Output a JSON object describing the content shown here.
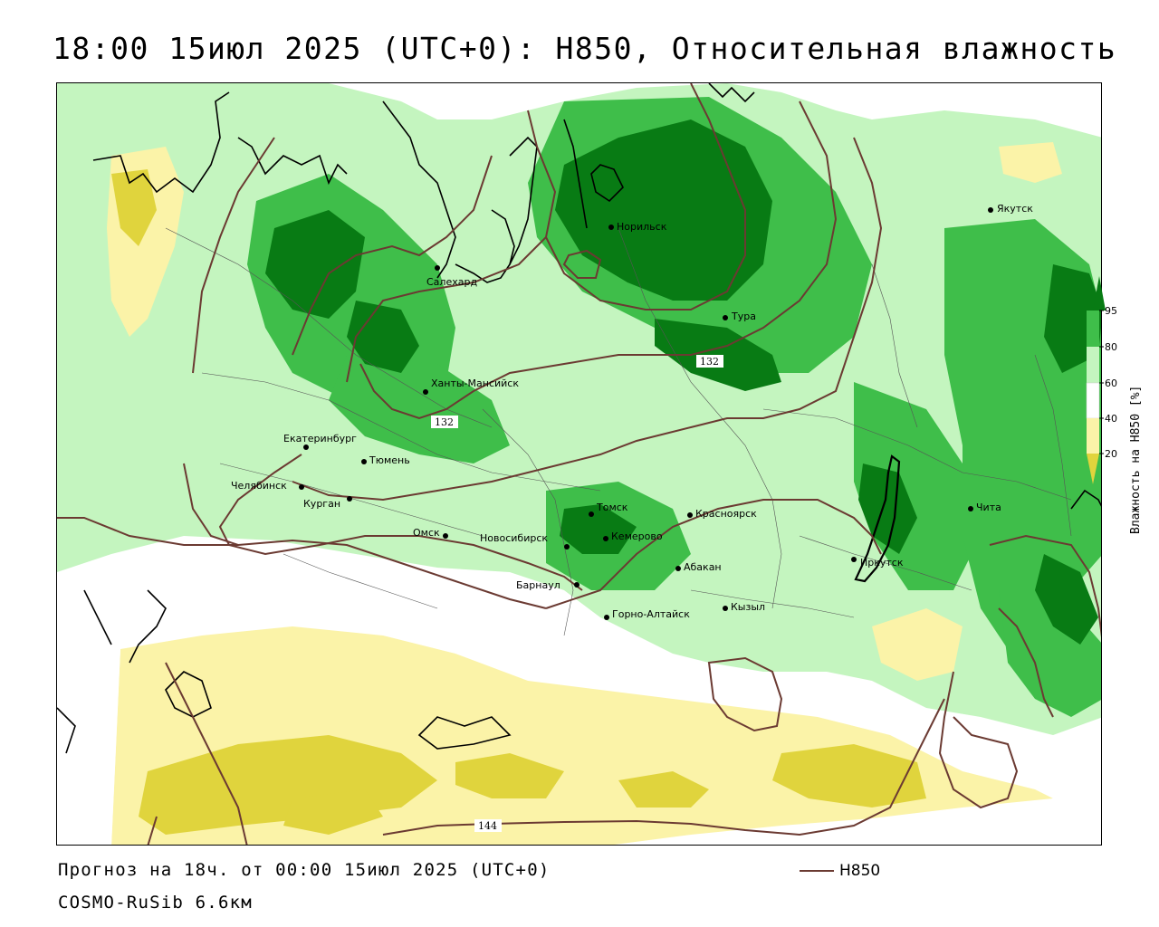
{
  "title": "18:00 15июл 2025 (UTC+0): H850, Относительная влажность",
  "footer": {
    "forecast": "Прогноз на 18ч. от 00:00 15июл 2025 (UTC+0)",
    "model": "COSMO-RuSib 6.6км",
    "line_legend": "H850"
  },
  "legend": {
    "title": "Влажность на Н850 [%]",
    "ticks": [
      "95",
      "80",
      "60",
      "40",
      "20"
    ]
  },
  "colors": {
    "rh_95": "#087b14",
    "rh_80": "#3fbe4a",
    "rh_60": "#c4f5bf",
    "rh_40": "#ffffff",
    "rh_20": "#fbf3a8",
    "rh_lt20": "#e0d43d",
    "contour": "#6b3a32",
    "border": "#000000"
  },
  "cities": [
    {
      "name": "Норильск"
    },
    {
      "name": "Салехард"
    },
    {
      "name": "Тура"
    },
    {
      "name": "Якутск"
    },
    {
      "name": "Ханты-Мансийск"
    },
    {
      "name": "Екатеринбург"
    },
    {
      "name": "Тюмень"
    },
    {
      "name": "Челябинск"
    },
    {
      "name": "Курган"
    },
    {
      "name": "Омск"
    },
    {
      "name": "Новосибирск"
    },
    {
      "name": "Томск"
    },
    {
      "name": "Кемерово"
    },
    {
      "name": "Красноярск"
    },
    {
      "name": "Барнаул"
    },
    {
      "name": "Абакан"
    },
    {
      "name": "Горно-Алтайск"
    },
    {
      "name": "Кызыл"
    },
    {
      "name": "Иркутск"
    },
    {
      "name": "Чита"
    }
  ],
  "contour_labels": [
    "132",
    "132",
    "144"
  ]
}
